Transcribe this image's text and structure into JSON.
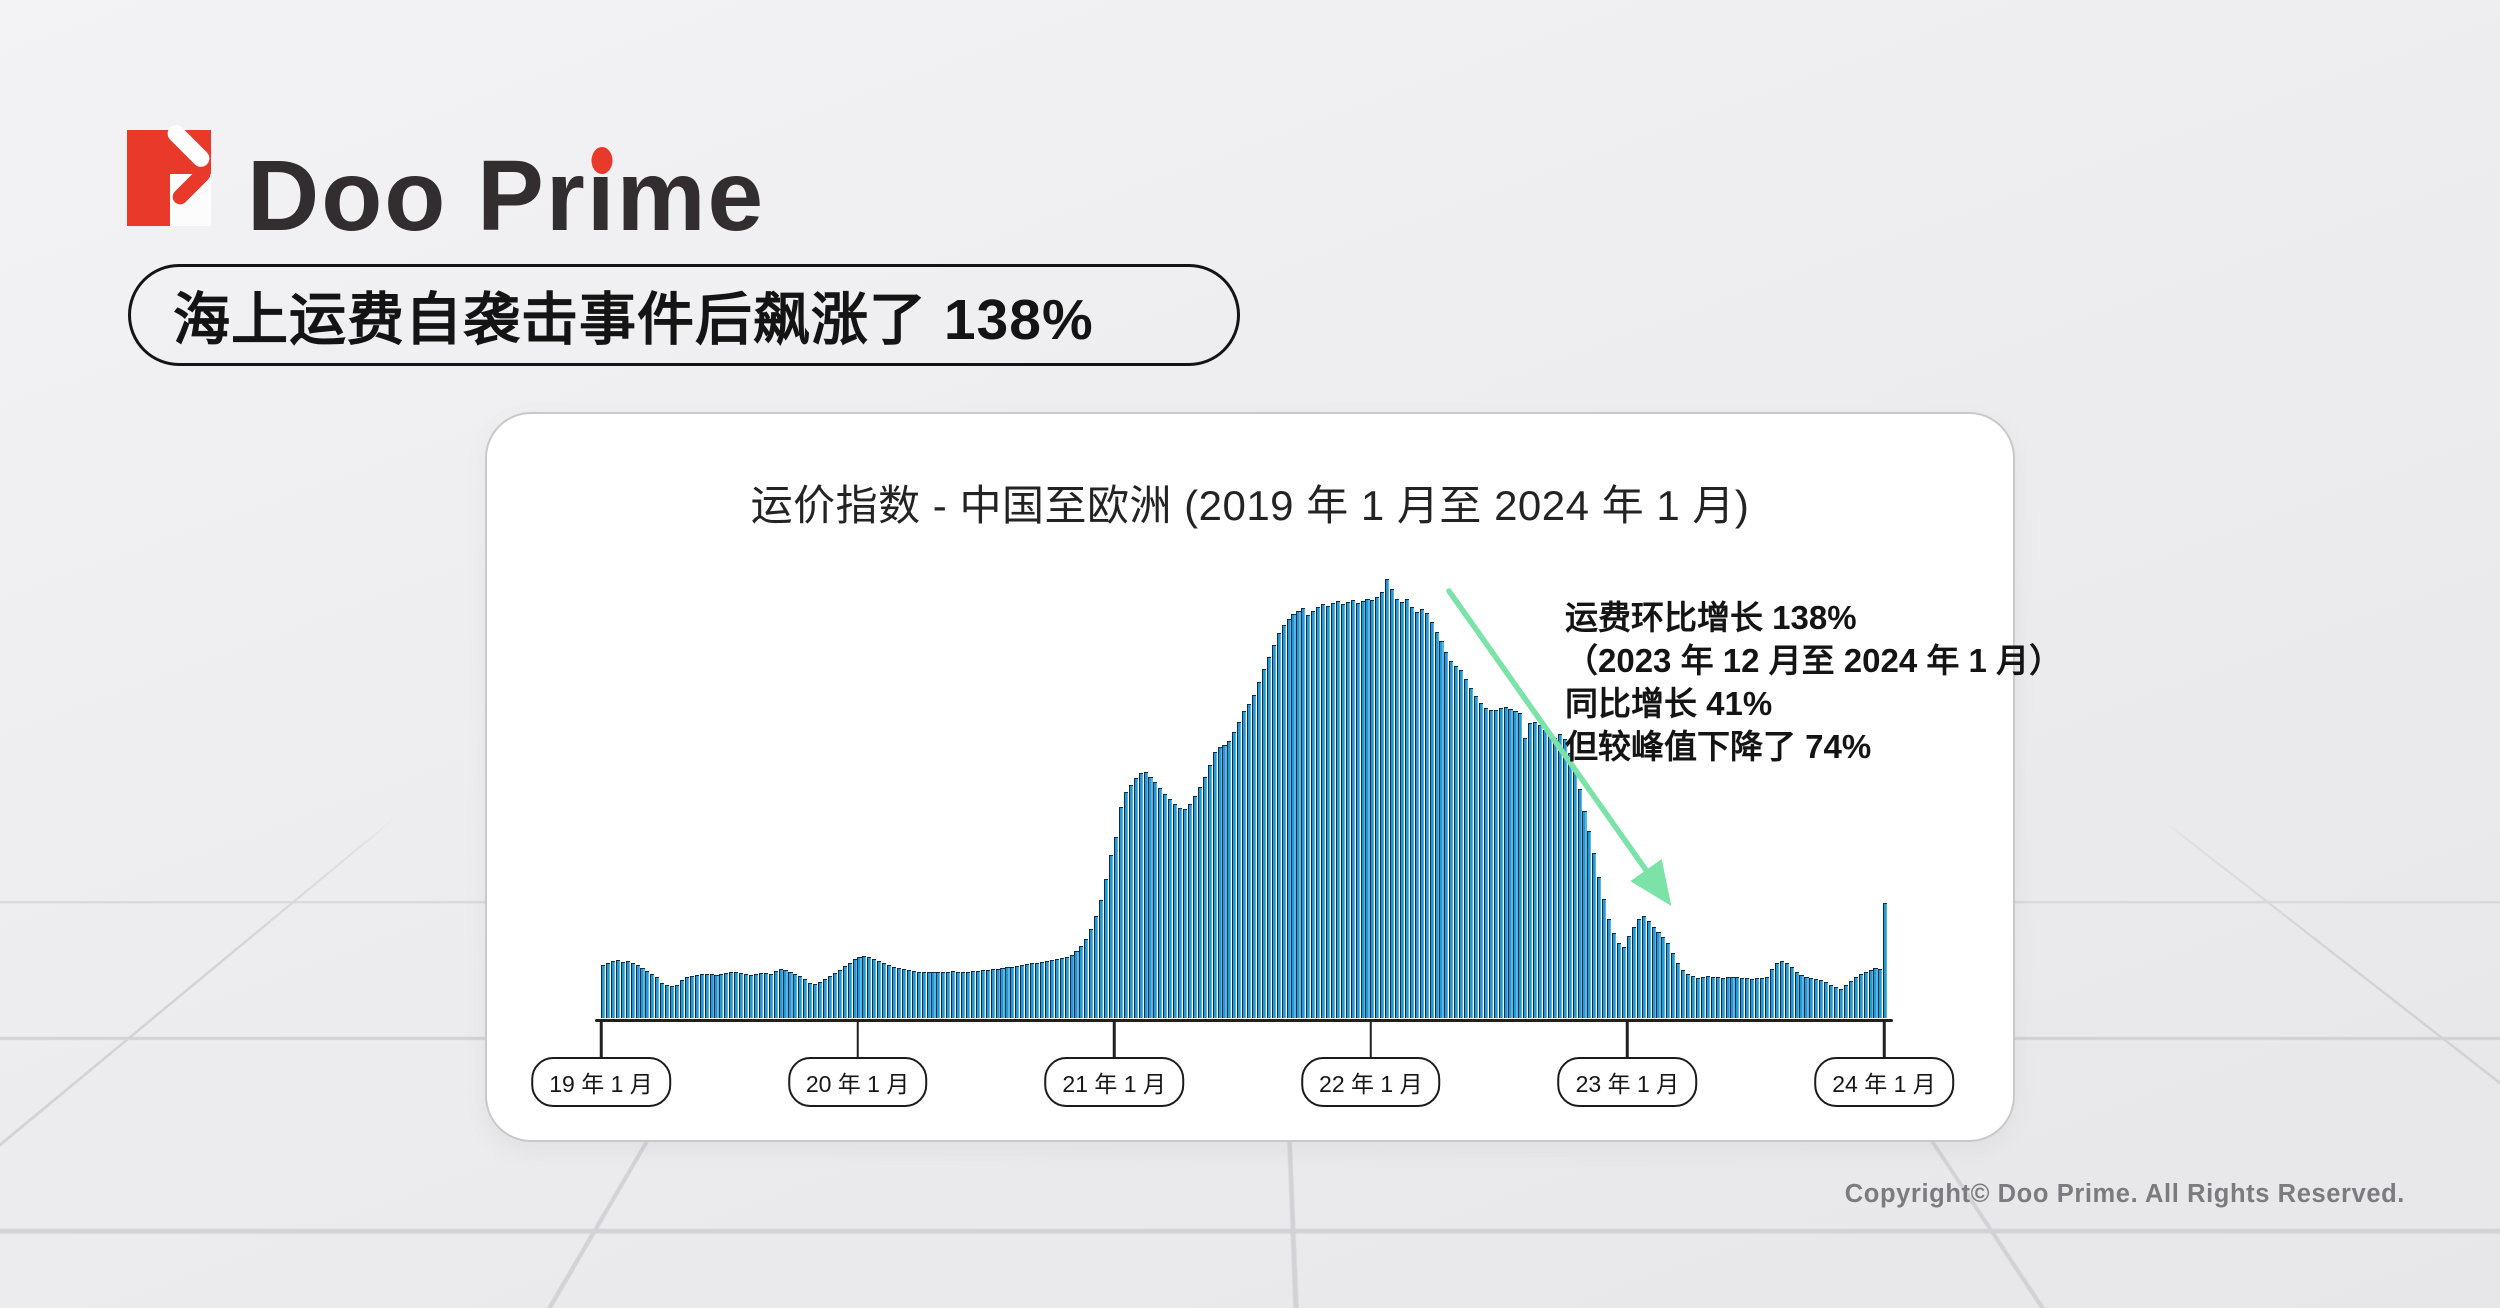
{
  "brand": {
    "name": "Doo Prime",
    "accent_color": "#e8392b"
  },
  "header": {
    "badge": "海上运费自袭击事件后飙涨了 138%"
  },
  "chart_data": {
    "type": "bar",
    "title": "运价指数 - 中国至欧洲 (2019 年 1 月至 2024 年 1 月)",
    "x_tick_labels": [
      "19 年 1 月",
      "20 年 1 月",
      "21 年 1 月",
      "22 年 1 月",
      "23 年 1 月",
      "24 年 1 月"
    ],
    "annotation_lines": [
      "运费环比增长 138%",
      "（2023 年 12 月至 2024 年 1 月）",
      "同比增长 41%",
      "但较峰值下降了 74%"
    ],
    "x_range": [
      "2019-01",
      "2024-01"
    ],
    "x_unit": "week",
    "ylim": [
      0,
      4500
    ],
    "bar_color": "#2199d6",
    "bar_edge_color": "#0f2c44",
    "bar_highlight_color": "#58b7e3",
    "arrow_color": "#7ce3a8",
    "axis_color": "#202020",
    "values": [
      520,
      545,
      565,
      570,
      555,
      560,
      545,
      520,
      490,
      460,
      430,
      400,
      340,
      320,
      310,
      325,
      375,
      400,
      415,
      425,
      430,
      435,
      430,
      425,
      430,
      440,
      450,
      455,
      440,
      430,
      425,
      435,
      445,
      440,
      435,
      465,
      485,
      470,
      450,
      430,
      415,
      385,
      345,
      330,
      355,
      385,
      415,
      445,
      475,
      510,
      545,
      580,
      600,
      612,
      598,
      578,
      558,
      538,
      520,
      505,
      492,
      480,
      468,
      458,
      450,
      452,
      455,
      450,
      446,
      450,
      454,
      458,
      455,
      450,
      454,
      458,
      462,
      466,
      471,
      477,
      483,
      490,
      497,
      504,
      512,
      520,
      528,
      536,
      545,
      554,
      563,
      572,
      580,
      590,
      605,
      625,
      660,
      710,
      780,
      880,
      1010,
      1170,
      1380,
      1620,
      1800,
      2100,
      2250,
      2320,
      2390,
      2440,
      2450,
      2400,
      2350,
      2290,
      2230,
      2180,
      2130,
      2090,
      2080,
      2130,
      2210,
      2300,
      2400,
      2520,
      2650,
      2700,
      2720,
      2760,
      2850,
      2950,
      3060,
      3130,
      3220,
      3350,
      3480,
      3600,
      3720,
      3840,
      3920,
      3980,
      4030,
      4060,
      4090,
      4020,
      4060,
      4100,
      4130,
      4110,
      4140,
      4160,
      4130,
      4150,
      4170,
      4140,
      4160,
      4180,
      4170,
      4200,
      4250,
      4380,
      4280,
      4180,
      4150,
      4180,
      4100,
      4050,
      4080,
      4040,
      3950,
      3850,
      3760,
      3650,
      3560,
      3510,
      3470,
      3380,
      3290,
      3210,
      3140,
      3090,
      3070,
      3070,
      3090,
      3100,
      3080,
      3060,
      3040,
      2790,
      2940,
      2950,
      2920,
      2870,
      2830,
      2790,
      2830,
      2780,
      2640,
      2480,
      2280,
      2060,
      1860,
      1640,
      1400,
      1180,
      980,
      840,
      740,
      700,
      810,
      900,
      980,
      1010,
      960,
      900,
      850,
      800,
      740,
      640,
      540,
      470,
      430,
      410,
      395,
      400,
      410,
      405,
      400,
      395,
      400,
      405,
      400,
      390,
      390,
      385,
      390,
      395,
      400,
      480,
      545,
      560,
      540,
      500,
      450,
      420,
      400,
      390,
      380,
      370,
      350,
      320,
      300,
      285,
      320,
      360,
      400,
      430,
      455,
      475,
      490,
      480,
      1140
    ]
  },
  "footer": {
    "copyright": "Copyright© Doo Prime. All Rights Reserved."
  }
}
